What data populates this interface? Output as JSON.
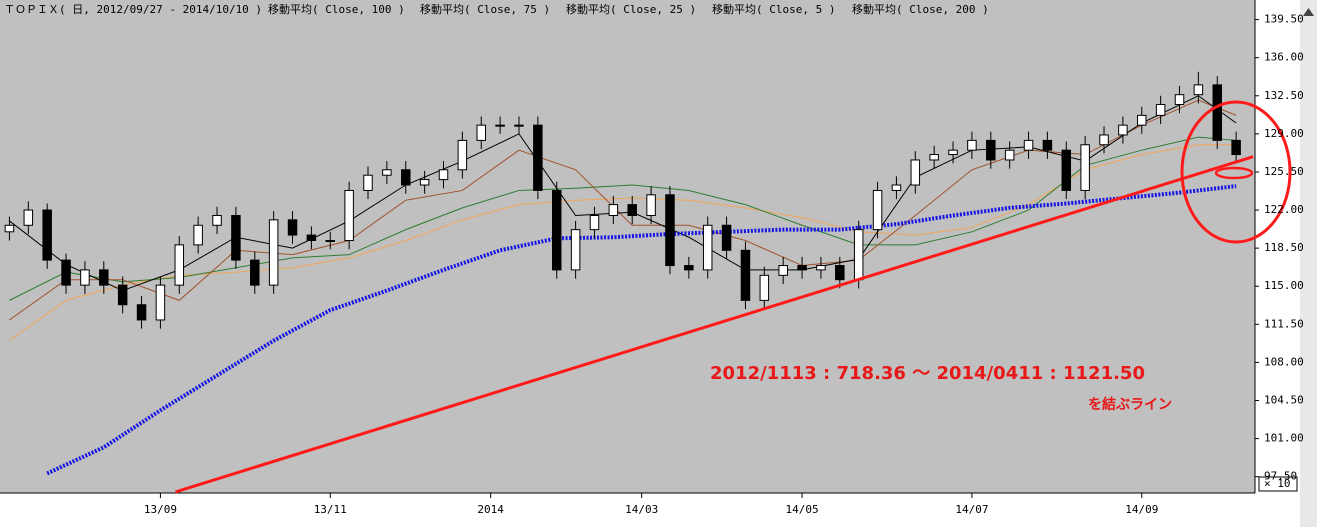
{
  "chart_data": {
    "type": "candlestick",
    "title": "ＴＯＰＩＸ( 日, 2012/09/27 - 2014/10/10 )",
    "candles": {
      "x": [
        0,
        1,
        2,
        3,
        4,
        5,
        6,
        7,
        8,
        9,
        10,
        11,
        12,
        13,
        14,
        15,
        16,
        17,
        18,
        19,
        20,
        21,
        22,
        23,
        24,
        25,
        26,
        27,
        28,
        29,
        30,
        31,
        32,
        33,
        34,
        35,
        36,
        37,
        38,
        39,
        40,
        41,
        42,
        43,
        44,
        45,
        46,
        47,
        48,
        49,
        50,
        51,
        52,
        53,
        54,
        55,
        56,
        57,
        58,
        59,
        60,
        61,
        62,
        63,
        64,
        65
      ],
      "open": [
        120.0,
        120.6,
        122.0,
        117.4,
        115.1,
        116.5,
        115.1,
        113.3,
        111.9,
        115.1,
        118.8,
        120.6,
        121.5,
        117.4,
        115.1,
        121.1,
        119.7,
        119.2,
        119.2,
        123.8,
        125.2,
        125.7,
        124.3,
        124.8,
        125.7,
        128.4,
        129.8,
        129.8,
        129.8,
        123.8,
        116.5,
        120.2,
        121.5,
        122.5,
        121.5,
        123.4,
        116.9,
        116.5,
        120.6,
        118.3,
        113.7,
        116.0,
        116.9,
        116.5,
        116.9,
        115.6,
        120.2,
        123.8,
        124.3,
        126.6,
        127.1,
        127.5,
        128.4,
        126.6,
        127.5,
        128.4,
        127.5,
        123.8,
        128.0,
        128.9,
        129.8,
        130.7,
        131.7,
        132.6,
        133.5,
        128.4
      ],
      "high": [
        121.4,
        122.8,
        122.6,
        118.0,
        117.3,
        117.3,
        115.9,
        114.1,
        115.9,
        119.6,
        121.4,
        122.3,
        122.3,
        118.2,
        121.9,
        121.9,
        120.5,
        120.0,
        124.6,
        126.0,
        126.5,
        126.5,
        125.6,
        126.5,
        129.2,
        130.6,
        130.6,
        130.6,
        130.6,
        124.6,
        121.0,
        122.3,
        123.3,
        123.3,
        124.2,
        124.2,
        117.7,
        121.4,
        121.4,
        119.1,
        116.8,
        117.7,
        117.7,
        117.7,
        117.7,
        121.0,
        124.6,
        125.1,
        127.4,
        127.9,
        128.3,
        129.2,
        129.2,
        128.3,
        129.2,
        129.2,
        128.3,
        128.8,
        129.7,
        130.6,
        131.5,
        132.5,
        133.4,
        134.7,
        134.3,
        129.2
      ],
      "low": [
        119.2,
        119.8,
        116.6,
        114.3,
        114.3,
        114.3,
        112.5,
        111.1,
        111.1,
        114.3,
        118.0,
        119.8,
        116.6,
        114.3,
        114.3,
        118.9,
        118.4,
        118.4,
        118.4,
        123.0,
        124.4,
        123.5,
        123.5,
        124.0,
        124.9,
        127.6,
        129.0,
        129.0,
        123.0,
        115.7,
        115.7,
        119.4,
        120.7,
        120.7,
        120.7,
        116.1,
        115.7,
        115.7,
        117.5,
        112.9,
        112.9,
        115.2,
        115.7,
        115.7,
        114.8,
        114.8,
        119.4,
        123.0,
        123.5,
        125.8,
        126.3,
        126.7,
        125.8,
        125.8,
        126.7,
        126.7,
        123.0,
        123.0,
        127.2,
        128.1,
        129.0,
        129.9,
        130.9,
        131.8,
        127.6,
        126.3
      ],
      "close": [
        120.6,
        122.0,
        117.4,
        115.1,
        116.5,
        115.1,
        113.3,
        111.9,
        115.1,
        118.8,
        120.6,
        121.5,
        117.4,
        115.1,
        121.1,
        119.7,
        119.2,
        119.2,
        123.8,
        125.2,
        125.7,
        124.3,
        124.8,
        125.7,
        128.4,
        129.8,
        129.8,
        129.8,
        123.8,
        116.5,
        120.2,
        121.5,
        122.5,
        121.5,
        123.4,
        116.9,
        116.5,
        120.6,
        118.3,
        113.7,
        116.0,
        116.9,
        116.5,
        116.9,
        115.6,
        120.2,
        123.8,
        124.3,
        126.6,
        127.1,
        127.5,
        128.4,
        126.6,
        127.5,
        128.4,
        127.5,
        123.8,
        128.0,
        128.9,
        129.8,
        130.7,
        131.7,
        132.6,
        133.5,
        128.4,
        127.1
      ]
    },
    "series": [
      {
        "name": "移動平均( Close, 100 )",
        "color": "#f2a65a",
        "dash": false,
        "x": [
          0,
          3,
          6,
          9,
          12,
          15,
          18,
          21,
          24,
          27,
          30,
          33,
          36,
          39,
          42,
          45,
          48,
          51,
          54,
          57,
          60,
          63,
          65
        ],
        "values": [
          110.0,
          113.7,
          115.1,
          116.0,
          116.3,
          116.7,
          117.6,
          119.2,
          121.1,
          122.5,
          122.9,
          123.1,
          122.9,
          122.2,
          121.3,
          120.0,
          119.7,
          120.4,
          122.5,
          125.7,
          127.1,
          128.0,
          128.0
        ]
      },
      {
        "name": "移動平均( Close, 75 )",
        "color": "#2e7d32",
        "dash": false,
        "x": [
          0,
          3,
          6,
          9,
          12,
          15,
          18,
          21,
          24,
          27,
          30,
          33,
          36,
          39,
          42,
          45,
          48,
          51,
          54,
          57,
          60,
          63,
          65
        ],
        "values": [
          113.7,
          116.3,
          115.4,
          115.8,
          116.7,
          117.6,
          117.9,
          120.2,
          122.2,
          123.8,
          124.0,
          124.3,
          123.8,
          122.5,
          120.6,
          118.8,
          118.8,
          120.0,
          122.0,
          126.1,
          127.5,
          128.7,
          128.4
        ]
      },
      {
        "name": "移動平均( Close, 25 )",
        "color": "#a0522d",
        "dash": false,
        "x": [
          0,
          3,
          6,
          9,
          12,
          15,
          18,
          21,
          24,
          27,
          30,
          33,
          36,
          39,
          42,
          45,
          48,
          51,
          54,
          57,
          60,
          63,
          65
        ],
        "values": [
          111.9,
          115.6,
          115.6,
          113.7,
          118.3,
          117.9,
          119.2,
          122.9,
          123.8,
          127.5,
          125.7,
          120.6,
          120.6,
          119.2,
          116.9,
          117.4,
          121.5,
          125.7,
          127.5,
          127.1,
          129.8,
          132.1,
          130.7
        ]
      },
      {
        "name": "移動平均( Close, 5 )",
        "color": "#000000",
        "dash": false,
        "x": [
          0,
          3,
          6,
          9,
          12,
          15,
          18,
          21,
          24,
          27,
          30,
          33,
          36,
          39,
          42,
          45,
          48,
          51,
          54,
          57,
          60,
          63,
          65
        ],
        "values": [
          121.0,
          117.0,
          114.6,
          116.5,
          119.5,
          118.5,
          121.0,
          124.3,
          126.5,
          129.0,
          121.5,
          121.8,
          119.5,
          116.5,
          116.5,
          117.5,
          125.0,
          127.5,
          127.8,
          126.5,
          130.0,
          132.5,
          130.0
        ]
      },
      {
        "name": "移動平均( Close, 200 )",
        "color": "#1414e6",
        "dash": true,
        "x": [
          2,
          5,
          8,
          11,
          14,
          17,
          20,
          23,
          26,
          29,
          32,
          35,
          38,
          41,
          44,
          47,
          50,
          53,
          56,
          59,
          62,
          65
        ],
        "values": [
          97.8,
          100.2,
          103.6,
          106.8,
          110.0,
          112.8,
          114.6,
          116.5,
          118.3,
          119.4,
          119.5,
          119.8,
          120.0,
          120.2,
          120.2,
          120.7,
          121.5,
          122.2,
          122.6,
          123.1,
          123.6,
          124.2
        ]
      }
    ],
    "trendline": {
      "color": "#ff1a1a",
      "x": [
        8.8,
        65.9
      ],
      "values": [
        96.1,
        126.9
      ]
    },
    "annotations": [
      "2012/1113 : 718.36 ～ 2014/0411 : 1121.50",
      "を結ぶライン"
    ],
    "scale_note": "× 10",
    "xlim": [
      -0.5,
      66
    ],
    "xticks": [
      {
        "value": 8,
        "label": "13/09"
      },
      {
        "value": 17,
        "label": "13/11"
      },
      {
        "value": 25.5,
        "label": "2014"
      },
      {
        "value": 33.5,
        "label": "14/03"
      },
      {
        "value": 42,
        "label": "14/05"
      },
      {
        "value": 51,
        "label": "14/07"
      },
      {
        "value": 60,
        "label": "14/09"
      }
    ],
    "ylim": [
      96,
      141.3
    ],
    "yticks": [
      {
        "value": 139.5,
        "label": "139.50"
      },
      {
        "value": 136,
        "label": "136.00"
      },
      {
        "value": 132.5,
        "label": "132.50"
      },
      {
        "value": 129,
        "label": "129.00"
      },
      {
        "value": 125.5,
        "label": "125.50"
      },
      {
        "value": 122,
        "label": "122.00"
      },
      {
        "value": 118.5,
        "label": "118.50"
      },
      {
        "value": 115,
        "label": "115.00"
      },
      {
        "value": 111.5,
        "label": "111.50"
      },
      {
        "value": 108,
        "label": "108.00"
      },
      {
        "value": 104.5,
        "label": "104.50"
      },
      {
        "value": 101,
        "label": "101.00"
      },
      {
        "value": 97.5,
        "label": "97.50"
      }
    ]
  }
}
